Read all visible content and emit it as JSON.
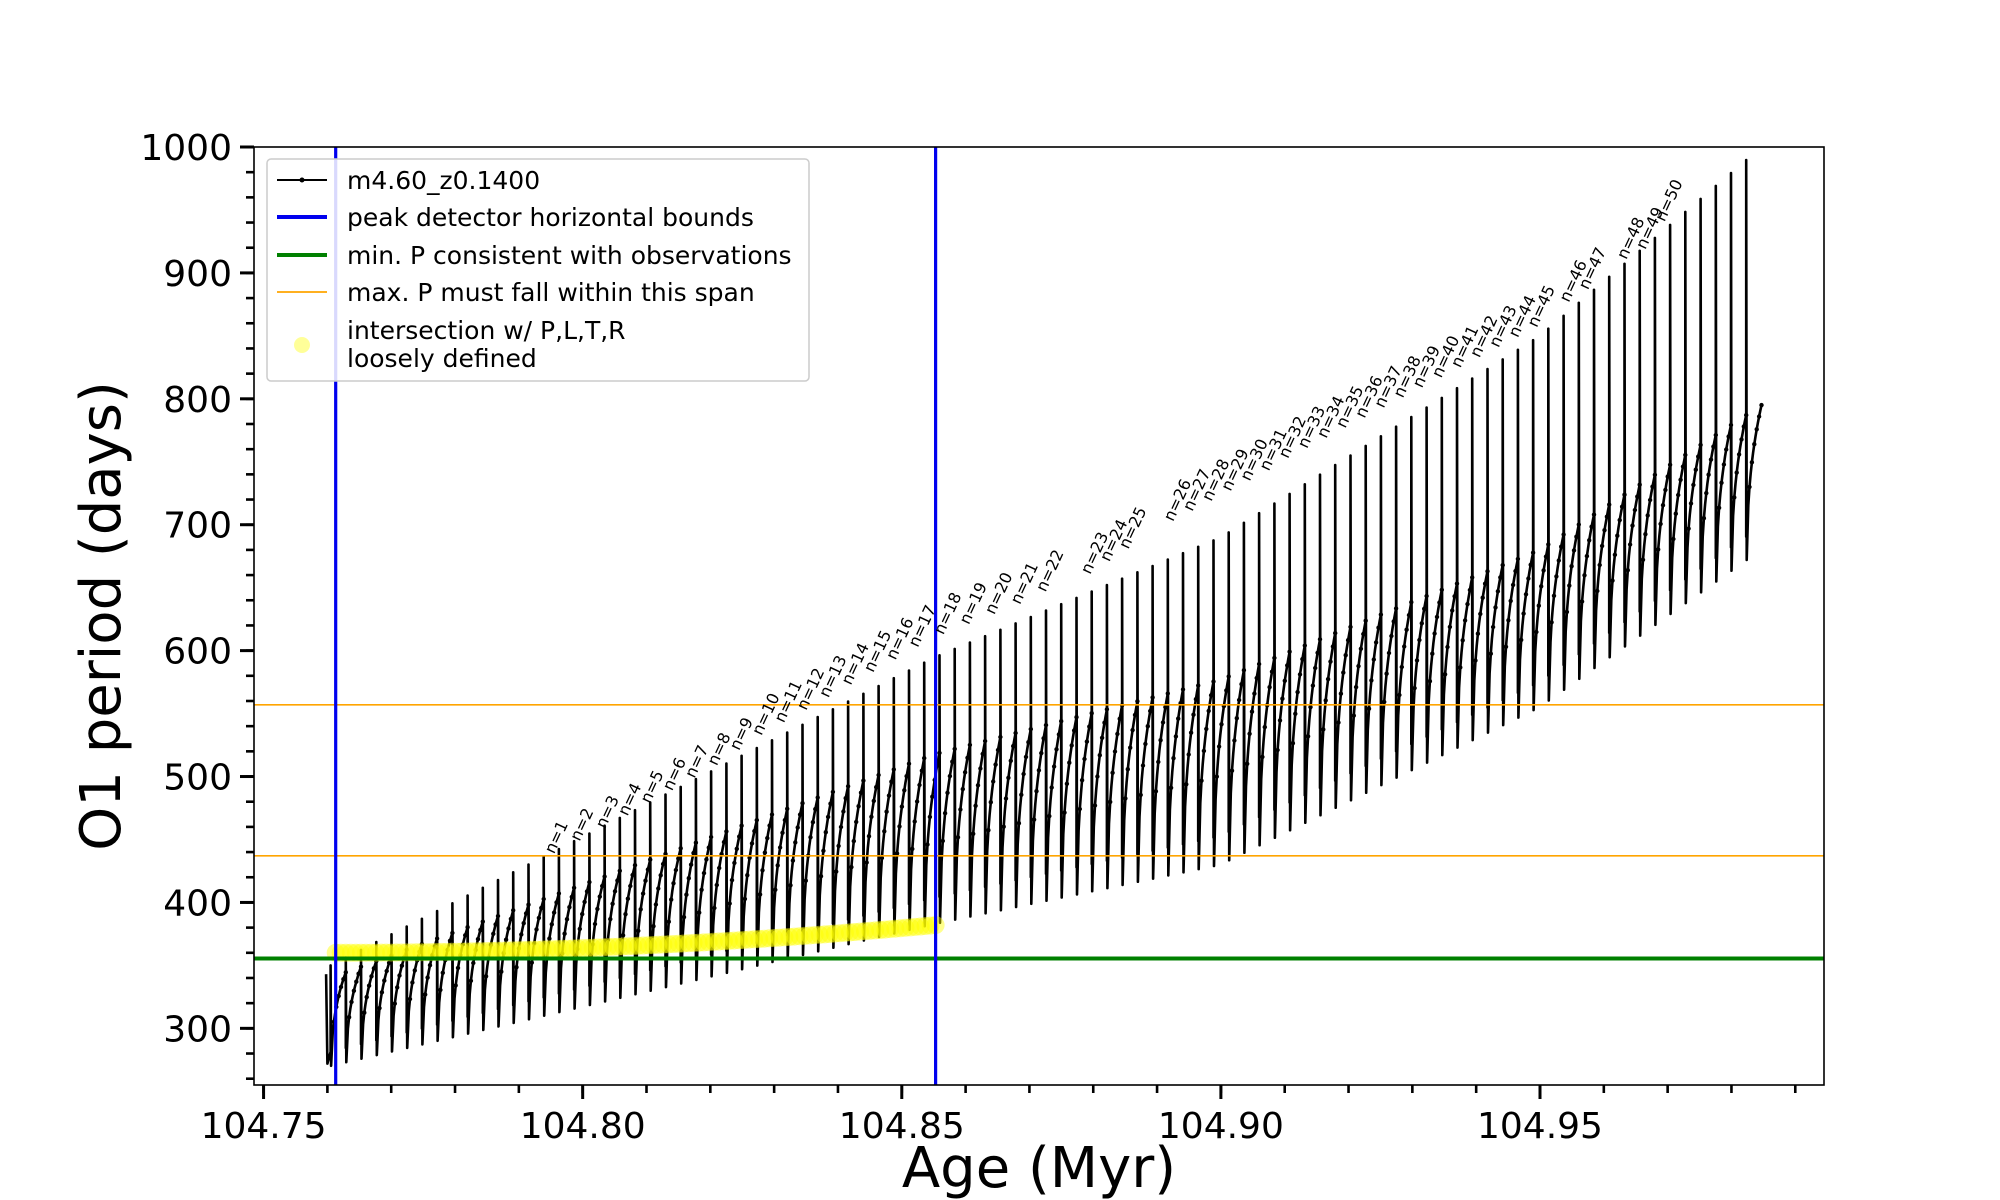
{
  "chart_data": {
    "type": "line",
    "xlabel": "Age (Myr)",
    "ylabel": "O1 period (days)",
    "xlim": [
      104.7485,
      104.9945
    ],
    "ylim": [
      255,
      1000
    ],
    "x_ticks": [
      104.75,
      104.8,
      104.85,
      104.9,
      104.95
    ],
    "x_tick_labels": [
      "104.75",
      "104.80",
      "104.85",
      "104.90",
      "104.95"
    ],
    "y_ticks": [
      300,
      400,
      500,
      600,
      700,
      800,
      900,
      1000
    ],
    "y_tick_labels": [
      "300",
      "400",
      "500",
      "600",
      "700",
      "800",
      "900",
      "1000"
    ],
    "legend": {
      "position": "upper-left",
      "entries": [
        {
          "label": "m4.60_z0.1400",
          "kind": "line-marker",
          "color": "#000000"
        },
        {
          "label": "peak detector horizontal bounds",
          "kind": "line",
          "color": "#0000ee"
        },
        {
          "label": "min. P consistent with observations",
          "kind": "line",
          "color": "#008000"
        },
        {
          "label": "max. P must fall within this span",
          "kind": "thin-line",
          "color": "#ffa500"
        },
        {
          "label": "intersection w/ P,L,T,R",
          "label2": "loosely defined",
          "kind": "marker",
          "color": "#ffff00"
        }
      ]
    },
    "vlines": [
      {
        "x": 104.7613,
        "color": "#0000ee"
      },
      {
        "x": 104.8553,
        "color": "#0000ee"
      }
    ],
    "hlines": [
      {
        "y": 355.5,
        "color": "#008000",
        "width": 4
      },
      {
        "y": 437,
        "color": "#ffa500",
        "width": 1.6
      },
      {
        "y": 557,
        "color": "#ffa500",
        "width": 1.6
      }
    ],
    "series": [
      {
        "name": "m4.60_z0.1400",
        "color": "#000000",
        "pulses": {
          "count": 94,
          "x_start": 104.7598,
          "x_end": 104.9847,
          "onset_start": 104.7605,
          "fitted_curves": {
            "plateau": [
              [
                104.7605,
                340
              ],
              [
                104.8553,
                518
              ],
              [
                104.9,
                577
              ],
              [
                104.95,
                680
              ],
              [
                104.9847,
                795
              ]
            ],
            "minimum": [
              [
                104.7605,
                270
              ],
              [
                104.8553,
                383
              ],
              [
                104.9,
                430
              ],
              [
                104.95,
                555
              ],
              [
                104.9847,
                680
              ]
            ],
            "spike": [
              [
                104.7605,
                350
              ],
              [
                104.8553,
                595
              ],
              [
                104.9,
                690
              ],
              [
                104.95,
                850
              ],
              [
                104.9847,
                1000
              ]
            ]
          }
        }
      }
    ],
    "intersection_points": {
      "color": "#ffff00",
      "x_range": [
        104.7613,
        104.8553
      ],
      "y_range": [
        360,
        382
      ],
      "count": 120
    },
    "annotations": [
      "n=1",
      "n=2",
      "n=3",
      "n=4",
      "n=5",
      "n=6",
      "n=7",
      "n=8",
      "n=9",
      "n=10",
      "n=11",
      "n=12",
      "n=13",
      "n=14",
      "n=15",
      "n=16",
      "n=17",
      "n=18",
      "n=19",
      "n=20",
      "n=21",
      "n=22",
      "n=23",
      "n=24",
      "n=25",
      "n=26",
      "n=27",
      "n=28",
      "n=29",
      "n=30",
      "n=31",
      "n=32",
      "n=33",
      "n=34",
      "n=35",
      "n=36",
      "n=37",
      "n=38",
      "n=39",
      "n=40",
      "n=41",
      "n=42",
      "n=43",
      "n=44",
      "n=45",
      "n=46",
      "n=47",
      "n=48",
      "n=49",
      "n=50"
    ],
    "annotation_x": [
      104.7955,
      104.7995,
      104.8035,
      104.807,
      104.8105,
      104.814,
      104.8175,
      104.821,
      104.8245,
      104.828,
      104.8315,
      104.835,
      104.8385,
      104.842,
      104.8455,
      104.849,
      104.8525,
      104.8565,
      104.8605,
      104.8645,
      104.8685,
      104.8725,
      104.8795,
      104.8825,
      104.8855,
      104.8925,
      104.8955,
      104.8985,
      104.9015,
      104.9045,
      104.9075,
      104.9105,
      104.9135,
      104.9165,
      104.9195,
      104.9225,
      104.9255,
      104.9285,
      104.9315,
      104.9345,
      104.9375,
      104.9405,
      104.9435,
      104.9465,
      104.9495,
      104.9545,
      104.9575,
      104.9635,
      104.9665,
      104.9695
    ],
    "annotation_y": [
      438,
      448,
      458,
      468,
      478,
      488,
      498,
      508,
      520,
      532,
      542,
      552,
      562,
      572,
      582,
      592,
      602,
      612,
      620,
      628,
      636,
      646,
      660,
      670,
      680,
      702,
      710,
      718,
      726,
      734,
      742,
      752,
      760,
      768,
      776,
      784,
      792,
      800,
      808,
      816,
      824,
      832,
      840,
      848,
      856,
      876,
      886,
      910,
      918,
      940
    ]
  }
}
